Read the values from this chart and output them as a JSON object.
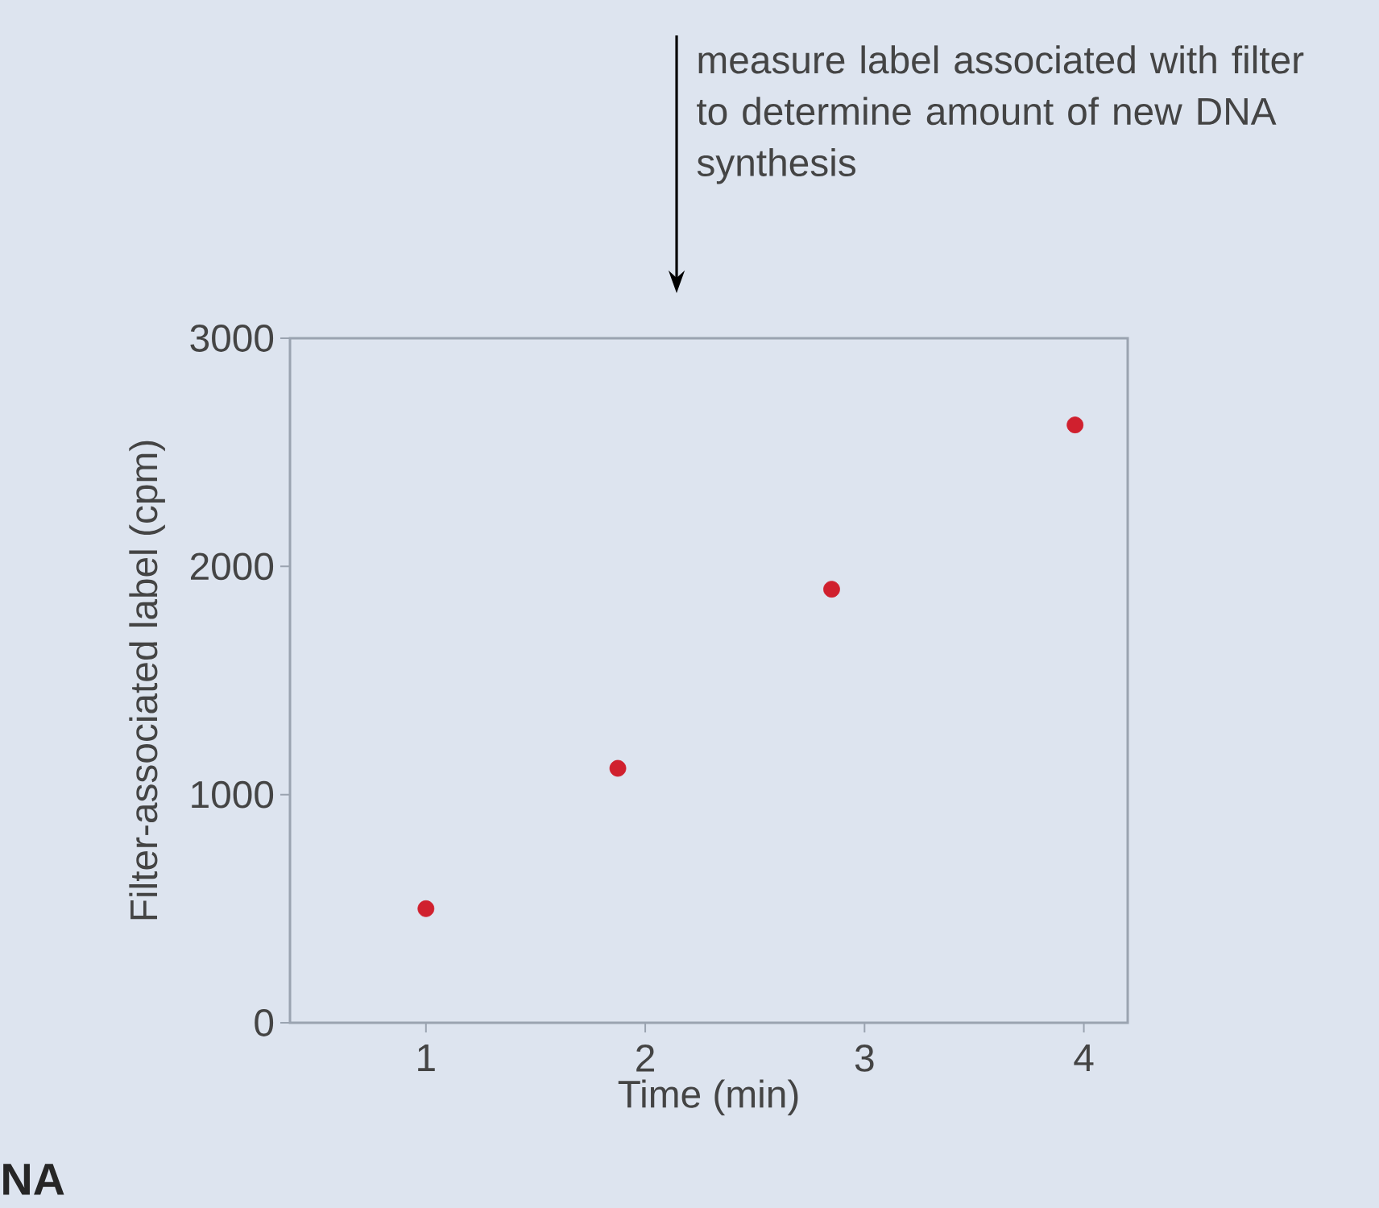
{
  "chart_data": {
    "type": "scatter",
    "xlabel": "Time (min)",
    "ylabel": "Filter-associated label (cpm)",
    "x": [
      1.0,
      1.875,
      2.85,
      3.96
    ],
    "series": [
      {
        "color": "#d0202e",
        "values": [
          500,
          1115,
          1900,
          2620
        ]
      }
    ],
    "xlim": [
      0.38,
      4.2
    ],
    "ylim": [
      0,
      3000
    ],
    "xticks": [
      1,
      2,
      3,
      4
    ],
    "yticks": [
      0,
      1000,
      2000,
      3000
    ],
    "marker": "circle",
    "grid": false,
    "annotations": [
      "measure label associated with filter to determine amount of new DNA synthesis",
      "NA"
    ]
  }
}
